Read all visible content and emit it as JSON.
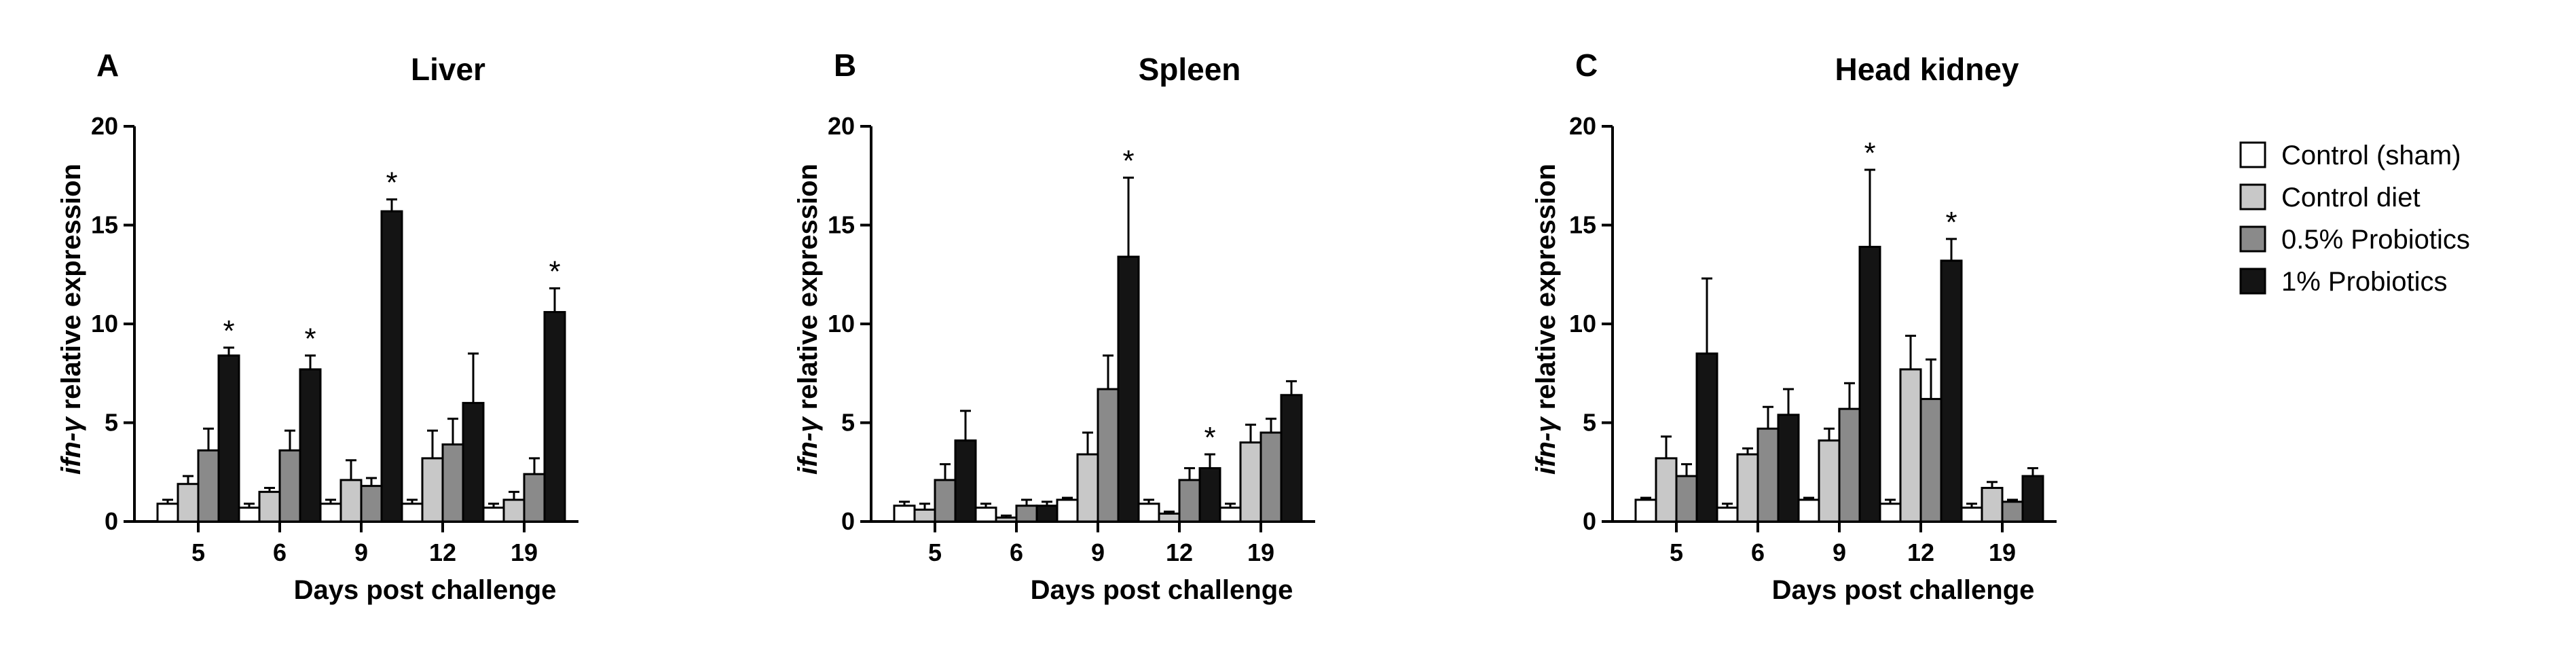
{
  "figure": {
    "background": "#ffffff"
  },
  "legend": {
    "entries": [
      {
        "name": "Control (sham)",
        "color": "#ffffff"
      },
      {
        "name": "Control diet",
        "color": "#c8c8c8"
      },
      {
        "name": "0.5% Probiotics",
        "color": "#8a8a8a"
      },
      {
        "name": "1% Probiotics",
        "color": "#141414"
      }
    ]
  },
  "chart_data": [
    {
      "type": "bar",
      "panel_letter": "A",
      "title": "Liver",
      "xlabel": "Days post challenge",
      "ylabel_italic": "ifn-γ",
      "ylabel_rest": " relative expression",
      "ylim": [
        0,
        20
      ],
      "yticks": [
        "0",
        "5",
        "10",
        "15",
        "20"
      ],
      "categories": [
        "5",
        "6",
        "9",
        "12",
        "19"
      ],
      "series": [
        {
          "name": "Control (sham)",
          "values": [
            0.9,
            0.7,
            0.9,
            0.9,
            0.7
          ],
          "errors": [
            0.2,
            0.2,
            0.2,
            0.2,
            0.2
          ]
        },
        {
          "name": "Control diet",
          "values": [
            1.9,
            1.5,
            2.1,
            3.2,
            1.1
          ],
          "errors": [
            0.4,
            0.2,
            1.0,
            1.4,
            0.4
          ]
        },
        {
          "name": "0.5% Probiotics",
          "values": [
            3.6,
            3.6,
            1.8,
            3.9,
            2.4
          ],
          "errors": [
            1.1,
            1.0,
            0.4,
            1.3,
            0.8
          ]
        },
        {
          "name": "1% Probiotics",
          "values": [
            8.4,
            7.7,
            15.7,
            6.0,
            10.6
          ],
          "errors": [
            0.4,
            0.7,
            0.6,
            2.5,
            1.2
          ]
        }
      ],
      "significance": [
        {
          "category": "5",
          "series": "1% Probiotics",
          "mark": "*"
        },
        {
          "category": "6",
          "series": "1% Probiotics",
          "mark": "*"
        },
        {
          "category": "9",
          "series": "1% Probiotics",
          "mark": "*"
        },
        {
          "category": "19",
          "series": "1% Probiotics",
          "mark": "*"
        }
      ]
    },
    {
      "type": "bar",
      "panel_letter": "B",
      "title": "Spleen",
      "xlabel": "Days post challenge",
      "ylabel_italic": "ifn-γ",
      "ylabel_rest": " relative expression",
      "ylim": [
        0,
        20
      ],
      "yticks": [
        "0",
        "5",
        "10",
        "15",
        "20"
      ],
      "categories": [
        "5",
        "6",
        "9",
        "12",
        "19"
      ],
      "series": [
        {
          "name": "Control (sham)",
          "values": [
            0.8,
            0.7,
            1.1,
            0.9,
            0.7
          ],
          "errors": [
            0.2,
            0.2,
            0.1,
            0.2,
            0.2
          ]
        },
        {
          "name": "Control diet",
          "values": [
            0.6,
            0.2,
            3.4,
            0.4,
            4.0
          ],
          "errors": [
            0.3,
            0.1,
            1.1,
            0.1,
            0.9
          ]
        },
        {
          "name": "0.5% Probiotics",
          "values": [
            2.1,
            0.8,
            6.7,
            2.1,
            4.5
          ],
          "errors": [
            0.8,
            0.3,
            1.7,
            0.6,
            0.7
          ]
        },
        {
          "name": "1% Probiotics",
          "values": [
            4.1,
            0.8,
            13.4,
            2.7,
            6.4
          ],
          "errors": [
            1.5,
            0.2,
            4.0,
            0.7,
            0.7
          ]
        }
      ],
      "significance": [
        {
          "category": "9",
          "series": "1% Probiotics",
          "mark": "*"
        },
        {
          "category": "12",
          "series": "1% Probiotics",
          "mark": "*"
        }
      ]
    },
    {
      "type": "bar",
      "panel_letter": "C",
      "title": "Head kidney",
      "xlabel": "Days post challenge",
      "ylabel_italic": "ifn-γ",
      "ylabel_rest": " relative expression",
      "ylim": [
        0,
        20
      ],
      "yticks": [
        "0",
        "5",
        "10",
        "15",
        "20"
      ],
      "categories": [
        "5",
        "6",
        "9",
        "12",
        "19"
      ],
      "series": [
        {
          "name": "Control (sham)",
          "values": [
            1.1,
            0.7,
            1.1,
            0.9,
            0.7
          ],
          "errors": [
            0.1,
            0.2,
            0.1,
            0.2,
            0.2
          ]
        },
        {
          "name": "Control diet",
          "values": [
            3.2,
            3.4,
            4.1,
            7.7,
            1.7
          ],
          "errors": [
            1.1,
            0.3,
            0.6,
            1.7,
            0.3
          ]
        },
        {
          "name": "0.5% Probiotics",
          "values": [
            2.3,
            4.7,
            5.7,
            6.2,
            1.0
          ],
          "errors": [
            0.6,
            1.1,
            1.3,
            2.0,
            0.1
          ]
        },
        {
          "name": "1% Probiotics",
          "values": [
            8.5,
            5.4,
            13.9,
            13.2,
            2.3
          ],
          "errors": [
            3.8,
            1.3,
            3.9,
            1.1,
            0.4
          ]
        }
      ],
      "significance": [
        {
          "category": "9",
          "series": "1% Probiotics",
          "mark": "*"
        },
        {
          "category": "12",
          "series": "1% Probiotics",
          "mark": "*"
        }
      ]
    }
  ]
}
